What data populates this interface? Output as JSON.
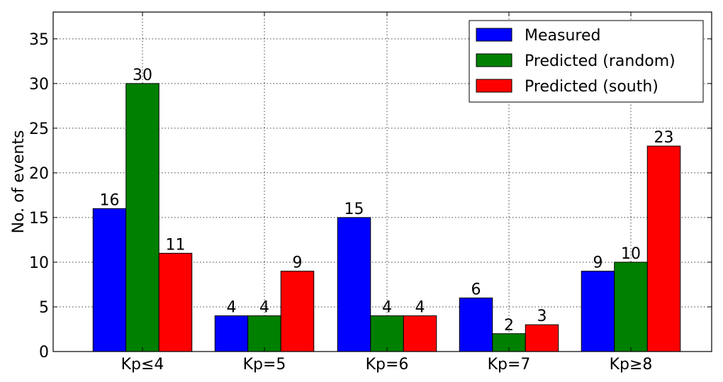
{
  "chart_data": {
    "type": "bar",
    "title": "",
    "xlabel": "",
    "ylabel": "No. of events",
    "ylim": [
      0,
      38
    ],
    "yticks": [
      0,
      5,
      10,
      15,
      20,
      25,
      30,
      35
    ],
    "categories": [
      "Kp≤4",
      "Kp=5",
      "Kp=6",
      "Kp=7",
      "Kp≥8"
    ],
    "series": [
      {
        "name": "Measured",
        "color": "#0000ff",
        "values": [
          16,
          4,
          15,
          6,
          9
        ]
      },
      {
        "name": "Predicted (random)",
        "color": "#008000",
        "values": [
          30,
          4,
          4,
          2,
          10
        ]
      },
      {
        "name": "Predicted (south)",
        "color": "#ff0000",
        "values": [
          11,
          9,
          4,
          3,
          23
        ]
      }
    ],
    "grid": true,
    "legend_position": "top-right"
  }
}
